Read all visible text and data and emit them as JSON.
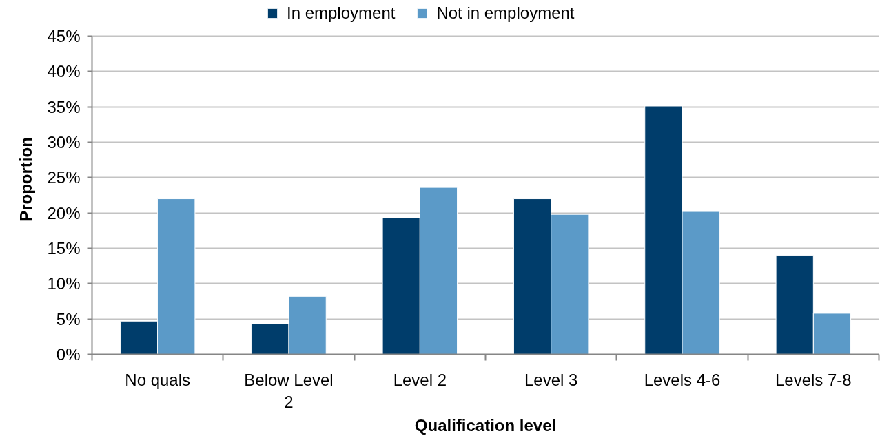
{
  "chart_data": {
    "type": "bar",
    "categories": [
      "No quals",
      "Below Level 2",
      "Level 2",
      "Level 3",
      "Levels 4-6",
      "Levels 7-8"
    ],
    "series": [
      {
        "name": "In employment",
        "color": "#003d6b",
        "values": [
          4.7,
          4.3,
          19.3,
          22.0,
          35.1,
          14.0
        ]
      },
      {
        "name": "Not in employment",
        "color": "#5b9ac8",
        "values": [
          22.0,
          8.2,
          23.6,
          19.8,
          20.2,
          5.8
        ]
      }
    ],
    "xlabel": "Qualification level",
    "ylabel": "Proportion",
    "ylim": [
      0,
      45
    ],
    "yticks": [
      {
        "value": 0,
        "label": "0%"
      },
      {
        "value": 5,
        "label": "5%"
      },
      {
        "value": 10,
        "label": "10%"
      },
      {
        "value": 15,
        "label": "15%"
      },
      {
        "value": 20,
        "label": "20%"
      },
      {
        "value": 25,
        "label": "25%"
      },
      {
        "value": 30,
        "label": "30%"
      },
      {
        "value": 35,
        "label": "35%"
      },
      {
        "value": 40,
        "label": "40%"
      },
      {
        "value": 45,
        "label": "45%"
      }
    ],
    "grid": "y",
    "legend": "top"
  }
}
